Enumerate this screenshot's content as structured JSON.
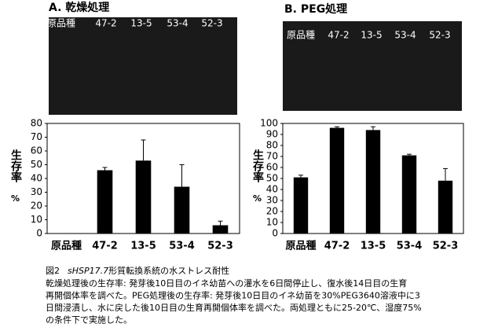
{
  "chart_data": [
    {
      "type": "bar",
      "title": "A. 乾燥処理",
      "y_label": "生存率",
      "y_unit": "%",
      "categories": [
        "原品種",
        "47-2",
        "13-5",
        "53-4",
        "52-3"
      ],
      "values": [
        0,
        46,
        53,
        34,
        6
      ],
      "errors": [
        0,
        2,
        15,
        16,
        3
      ],
      "color": "#000000",
      "ylim": [
        0,
        80
      ],
      "yticks": [
        0,
        10,
        20,
        30,
        40,
        50,
        60,
        70,
        80
      ]
    },
    {
      "type": "bar",
      "title": "B. PEG処理",
      "y_label": "生存率",
      "y_unit": "%",
      "categories": [
        "原品種",
        "47-2",
        "13-5",
        "53-4",
        "52-3"
      ],
      "values": [
        51,
        96,
        94,
        71,
        48
      ],
      "errors": [
        2,
        1,
        3,
        1,
        11
      ],
      "color": "#000000",
      "ylim": [
        0,
        100
      ],
      "yticks": [
        0,
        10,
        20,
        30,
        40,
        50,
        60,
        70,
        80,
        90,
        100
      ]
    }
  ],
  "caption": {
    "figure": "図2",
    "gene": "sHSP17.7",
    "title": "形質転換系統の水ストレス耐性",
    "lines": [
      "乾燥処理後の生存率: 発芽後10日目のイネ幼苗への灌水を6日間停止し、復水後14日目の生育",
      "再開個体率を調べた。PEG処理後の生存率: 発芽後10日目のイネ幼苗を30%PEG3640溶液中に3",
      "日間浸漬し、水に戻した後10日目の生育再開個体率を調べた。両処理ともに25-20℃、湿度75%",
      "の条件下で実施した。"
    ]
  }
}
